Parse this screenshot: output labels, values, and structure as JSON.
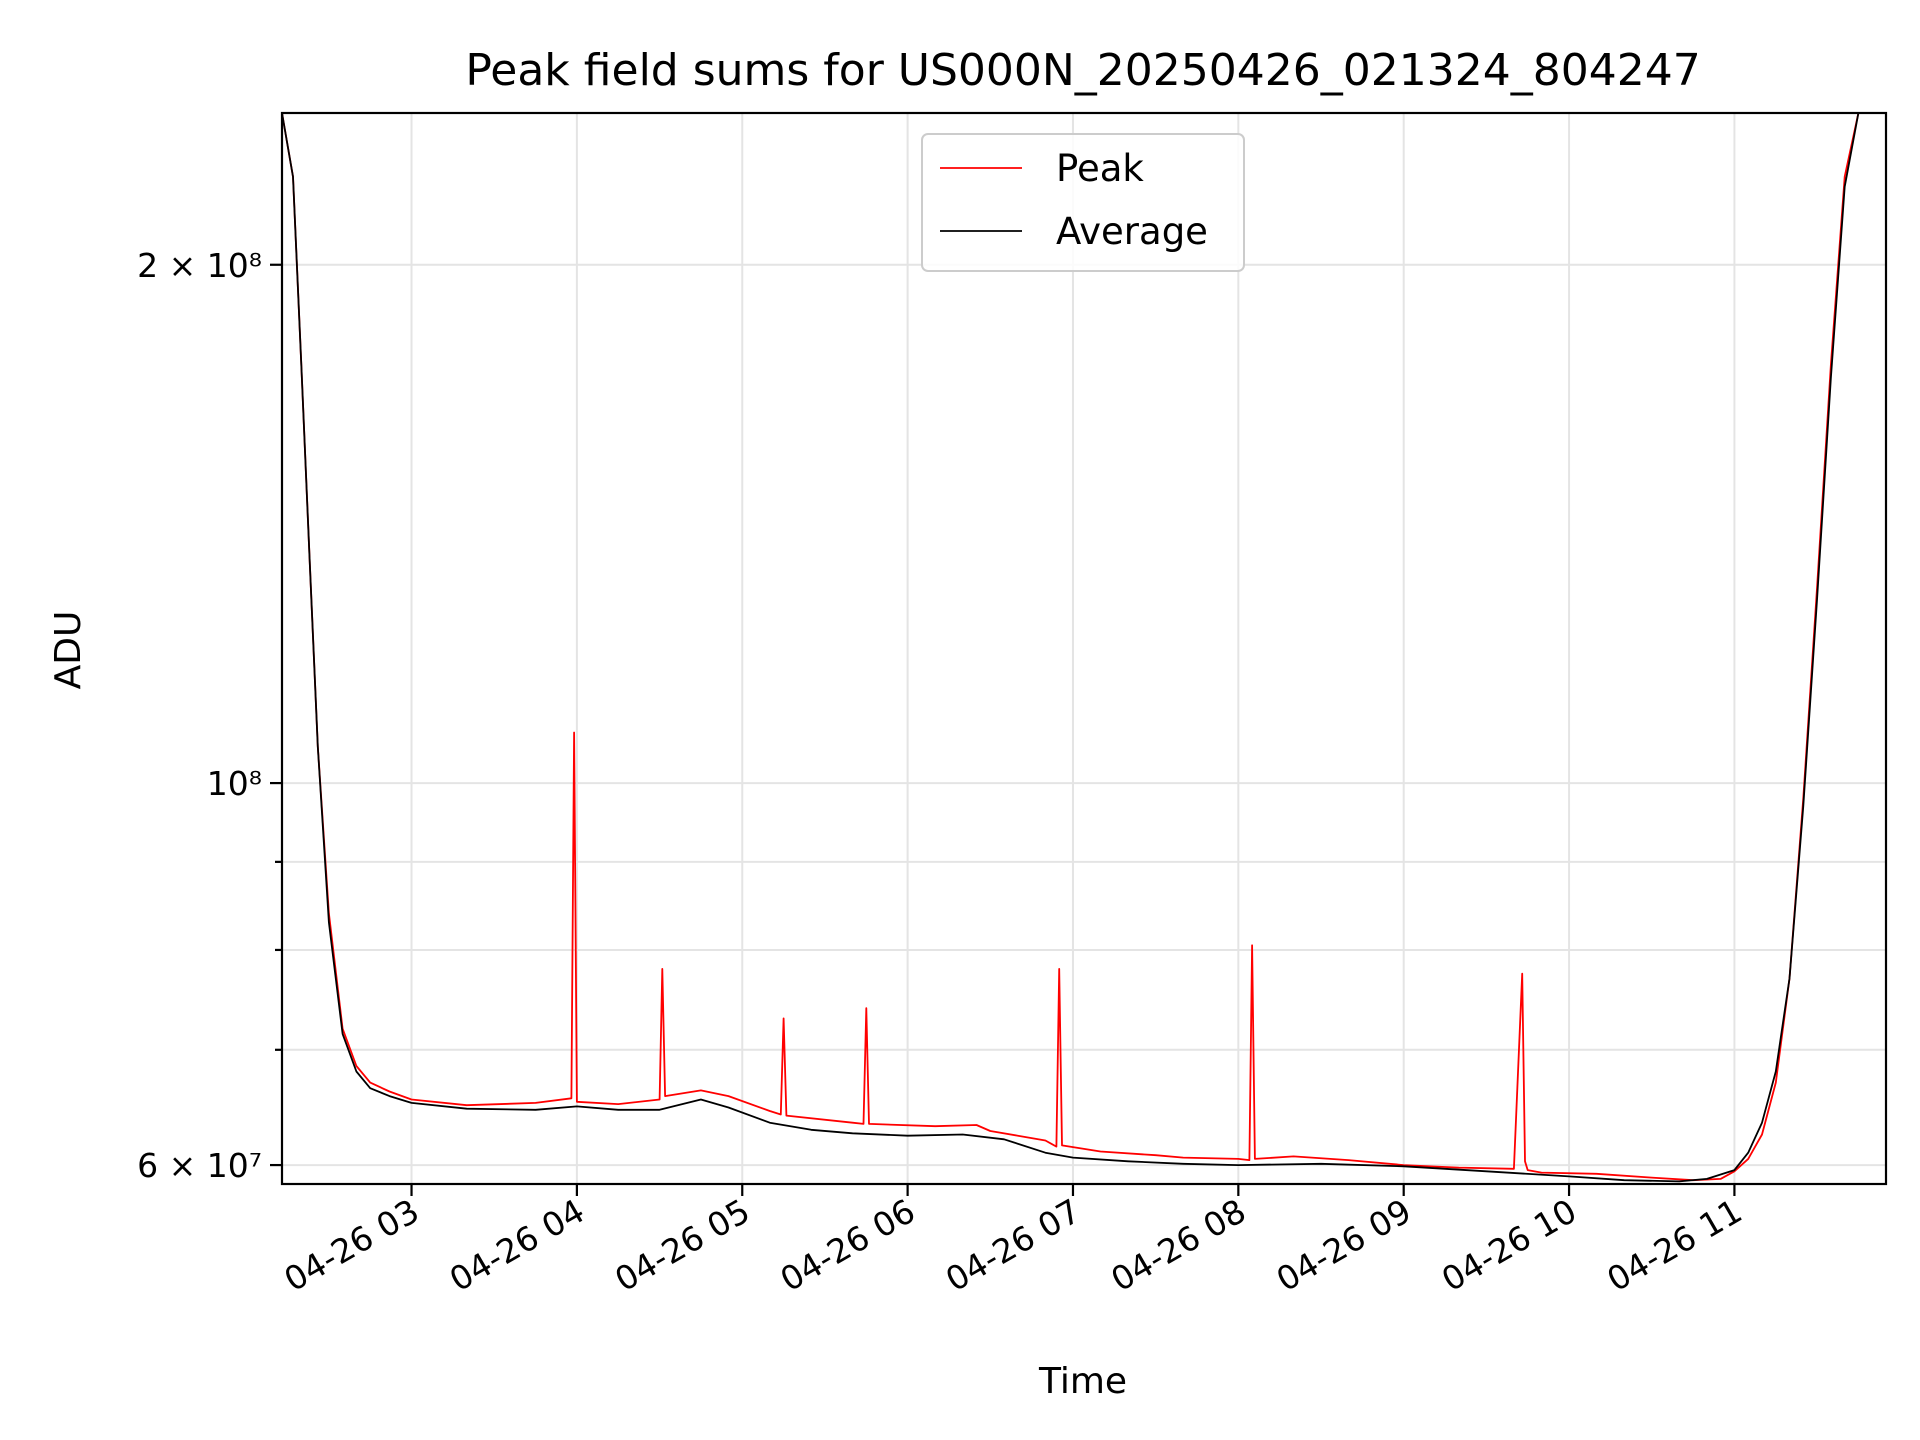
{
  "chart_data": {
    "type": "line",
    "title": "Peak field sums for US000N_20250426_021324_804247",
    "xlabel": "Time",
    "ylabel": "ADU",
    "yscale": "log",
    "ylim": [
      58500000,
      245000000
    ],
    "xlim": [
      "04-26 02:13",
      "04-26 11:55"
    ],
    "grid": true,
    "legend_position": "upper center",
    "x_ticks": [
      "04-26 03",
      "04-26 04",
      "04-26 05",
      "04-26 06",
      "04-26 07",
      "04-26 08",
      "04-26 09",
      "04-26 10",
      "04-26 11"
    ],
    "y_ticks": [
      {
        "value": 60000000,
        "label": "6 × 10⁷"
      },
      {
        "value": 100000000,
        "label": "10⁸"
      },
      {
        "value": 200000000,
        "label": "2 × 10⁸"
      }
    ],
    "y_minor_ticks": [
      70000000,
      80000000,
      90000000
    ],
    "series": [
      {
        "name": "Peak",
        "color": "#ff0000",
        "x": [
          "04-26 02:13",
          "04-26 02:17",
          "04-26 02:20",
          "04-26 02:23",
          "04-26 02:26",
          "04-26 02:30",
          "04-26 02:35",
          "04-26 02:40",
          "04-26 02:45",
          "04-26 02:52",
          "04-26 03:00",
          "04-26 03:20",
          "04-26 03:45",
          "04-26 03:58",
          "04-26 03:59",
          "04-26 04:00",
          "04-26 04:15",
          "04-26 04:30",
          "04-26 04:31",
          "04-26 04:32",
          "04-26 04:45",
          "04-26 04:55",
          "04-26 05:10",
          "04-26 05:14",
          "04-26 05:15",
          "04-26 05:16",
          "04-26 05:40",
          "04-26 05:44",
          "04-26 05:45",
          "04-26 05:46",
          "04-26 06:10",
          "04-26 06:25",
          "04-26 06:30",
          "04-26 06:40",
          "04-26 06:50",
          "04-26 06:54",
          "04-26 06:55",
          "04-26 06:56",
          "04-26 07:10",
          "04-26 07:30",
          "04-26 07:40",
          "04-26 08:00",
          "04-26 08:04",
          "04-26 08:05",
          "04-26 08:06",
          "04-26 08:20",
          "04-26 08:40",
          "04-26 09:00",
          "04-26 09:20",
          "04-26 09:40",
          "04-26 09:43",
          "04-26 09:44",
          "04-26 09:45",
          "04-26 09:50",
          "04-26 10:10",
          "04-26 10:30",
          "04-26 10:45",
          "04-26 10:55",
          "04-26 11:00",
          "04-26 11:05",
          "04-26 11:10",
          "04-26 11:15",
          "04-26 11:20",
          "04-26 11:25",
          "04-26 11:30",
          "04-26 11:35",
          "04-26 11:40",
          "04-26 11:45",
          "04-26 11:50",
          "04-26 11:55"
        ],
        "y": [
          245000000,
          225000000,
          175000000,
          135000000,
          105000000,
          84000000,
          72000000,
          68500000,
          67000000,
          66200000,
          65500000,
          65000000,
          65200000,
          65600000,
          107000000,
          65300000,
          65100000,
          65500000,
          78000000,
          65800000,
          66300000,
          65800000,
          64500000,
          64200000,
          73000000,
          64100000,
          63500000,
          63400000,
          74000000,
          63400000,
          63200000,
          63300000,
          62800000,
          62400000,
          62000000,
          61500000,
          78000000,
          61600000,
          61100000,
          60800000,
          60600000,
          60500000,
          60400000,
          80500000,
          60500000,
          60700000,
          60400000,
          60000000,
          59800000,
          59700000,
          77500000,
          60300000,
          59600000,
          59400000,
          59300000,
          59000000,
          58800000,
          58900000,
          59500000,
          60500000,
          62500000,
          67000000,
          77000000,
          98000000,
          130000000,
          175000000,
          225000000,
          245000000,
          245000000,
          245000000
        ]
      },
      {
        "name": "Average",
        "color": "#000000",
        "x": [
          "04-26 02:13",
          "04-26 02:17",
          "04-26 02:20",
          "04-26 02:23",
          "04-26 02:26",
          "04-26 02:30",
          "04-26 02:35",
          "04-26 02:40",
          "04-26 02:45",
          "04-26 02:52",
          "04-26 03:00",
          "04-26 03:20",
          "04-26 03:45",
          "04-26 04:00",
          "04-26 04:15",
          "04-26 04:30",
          "04-26 04:45",
          "04-26 04:55",
          "04-26 05:10",
          "04-26 05:25",
          "04-26 05:40",
          "04-26 06:00",
          "04-26 06:20",
          "04-26 06:35",
          "04-26 06:50",
          "04-26 07:00",
          "04-26 07:20",
          "04-26 07:40",
          "04-26 08:00",
          "04-26 08:30",
          "04-26 09:00",
          "04-26 09:30",
          "04-26 10:00",
          "04-26 10:20",
          "04-26 10:40",
          "04-26 10:50",
          "04-26 11:00",
          "04-26 11:05",
          "04-26 11:10",
          "04-26 11:15",
          "04-26 11:20",
          "04-26 11:25",
          "04-26 11:30",
          "04-26 11:35",
          "04-26 11:40",
          "04-26 11:45",
          "04-26 11:50",
          "04-26 11:55"
        ],
        "y": [
          245000000,
          225000000,
          175000000,
          135000000,
          105000000,
          83000000,
          71500000,
          68000000,
          66500000,
          65800000,
          65200000,
          64700000,
          64600000,
          64900000,
          64600000,
          64600000,
          65500000,
          64800000,
          63500000,
          62900000,
          62600000,
          62400000,
          62500000,
          62100000,
          61000000,
          60600000,
          60300000,
          60100000,
          60000000,
          60100000,
          59900000,
          59500000,
          59100000,
          58800000,
          58700000,
          58900000,
          59600000,
          61000000,
          63500000,
          68000000,
          77000000,
          97000000,
          128000000,
          172000000,
          222000000,
          245000000,
          245000000,
          245000000
        ]
      }
    ]
  }
}
